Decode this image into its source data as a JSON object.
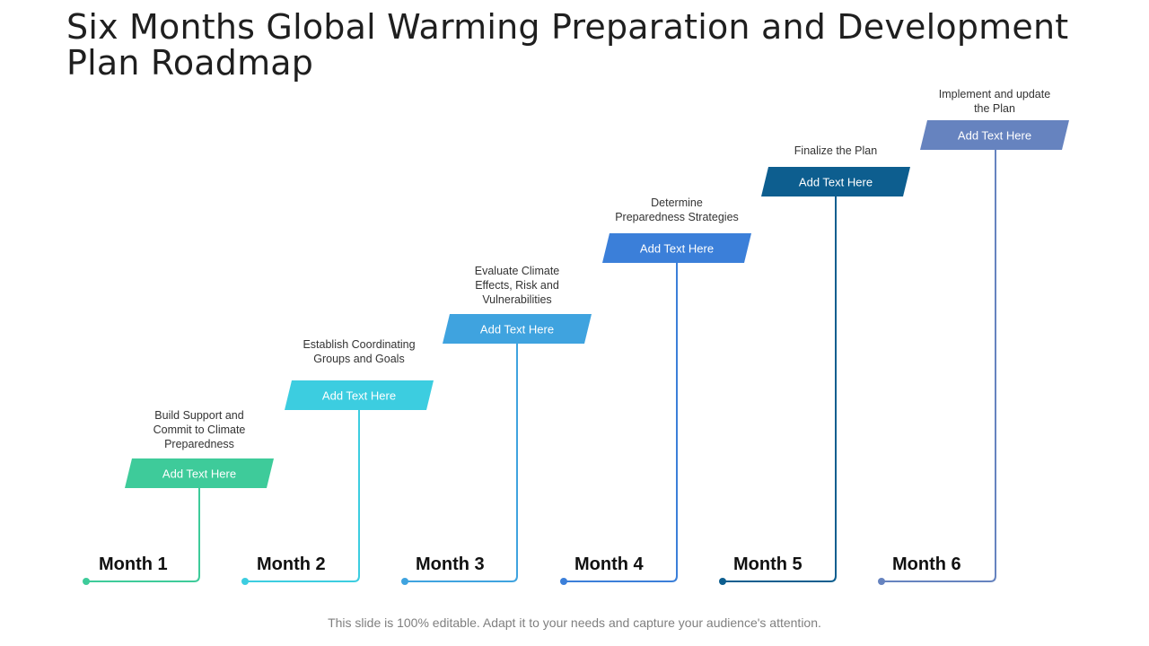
{
  "title": "Six Months Global Warming Preparation and Development Plan Roadmap",
  "footer": "This slide is 100% editable. Adapt it to your needs and capture your audience's attention.",
  "steps": [
    {
      "month": "Month 1",
      "label": "Add Text Here",
      "description": "Build Support and\nCommit to Climate\nPreparedness",
      "color": "#3ecb9a"
    },
    {
      "month": "Month 2",
      "label": "Add Text Here",
      "description": "Establish Coordinating\nGroups and Goals",
      "color": "#3ccde0"
    },
    {
      "month": "Month 3",
      "label": "Add Text Here",
      "description": "Evaluate Climate\nEffects, Risk and\nVulnerabilities",
      "color": "#3fa3df"
    },
    {
      "month": "Month 4",
      "label": "Add Text Here",
      "description": "Determine\nPreparedness Strategies",
      "color": "#3b7fd9"
    },
    {
      "month": "Month 5",
      "label": "Add Text Here",
      "description": "Finalize the Plan",
      "color": "#0d5e8f"
    },
    {
      "month": "Month 6",
      "label": "Add Text Here",
      "description": "Implement and update\nthe Plan",
      "color": "#6683bf"
    }
  ]
}
